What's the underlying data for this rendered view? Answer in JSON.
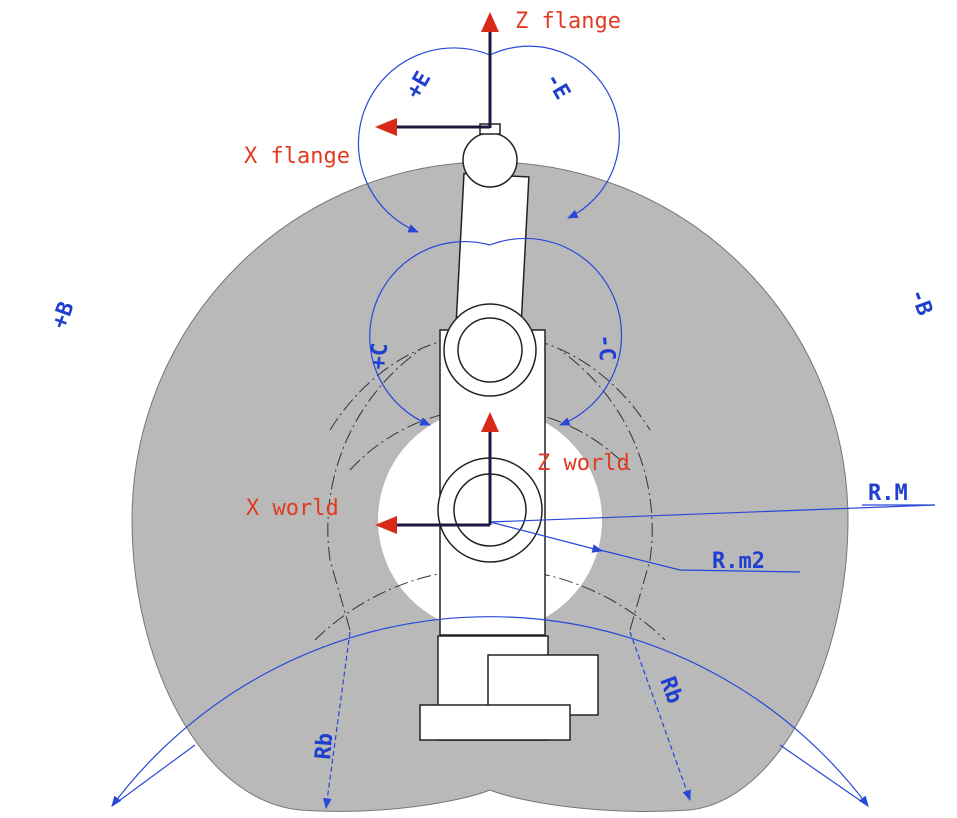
{
  "axes": {
    "z_flange": "Z flange",
    "x_flange": "X flange",
    "z_world": "Z world",
    "x_world": "X world"
  },
  "rotations": {
    "plus_e": "+E",
    "minus_e": "-E",
    "plus_b": "+B",
    "minus_b": "-B",
    "plus_c": "+C",
    "minus_c": "-C"
  },
  "radii": {
    "r_max": "R.M",
    "r_min2": "R.m2",
    "rb": [
      "Rb",
      "Rb"
    ]
  }
}
